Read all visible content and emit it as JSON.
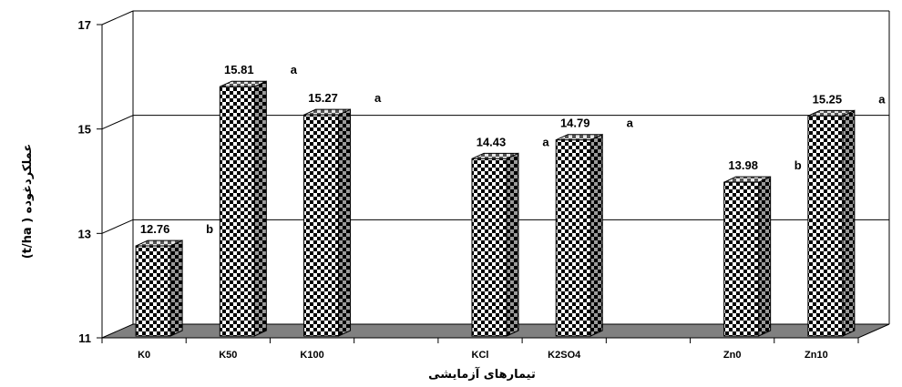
{
  "chart_data": {
    "type": "bar",
    "title": "",
    "xlabel": "تیمارهای آزمایشی",
    "ylabel": "(t/ha ) عملکردغوده",
    "ylim": [
      11,
      17
    ],
    "yticks": [
      "11",
      "13",
      "15",
      "17"
    ],
    "grid": true,
    "groups": [
      [
        "K0",
        "K50",
        "K100"
      ],
      [
        "KCl",
        "K2SO4"
      ],
      [
        "Zn0",
        "Zn10"
      ]
    ],
    "categories": [
      "K0",
      "K50",
      "K100",
      "KCl",
      "K2SO4",
      "Zn0",
      "Zn10"
    ],
    "values": [
      12.76,
      15.81,
      15.27,
      14.43,
      14.79,
      13.98,
      15.25
    ],
    "value_labels": [
      "12.76",
      "15.81",
      "15.27",
      "14.43",
      "14.79",
      "13.98",
      "15.25"
    ],
    "letters": [
      "b",
      "a",
      "a",
      "a",
      "a",
      "b",
      "a"
    ],
    "bar_style": "3d-checkered"
  }
}
